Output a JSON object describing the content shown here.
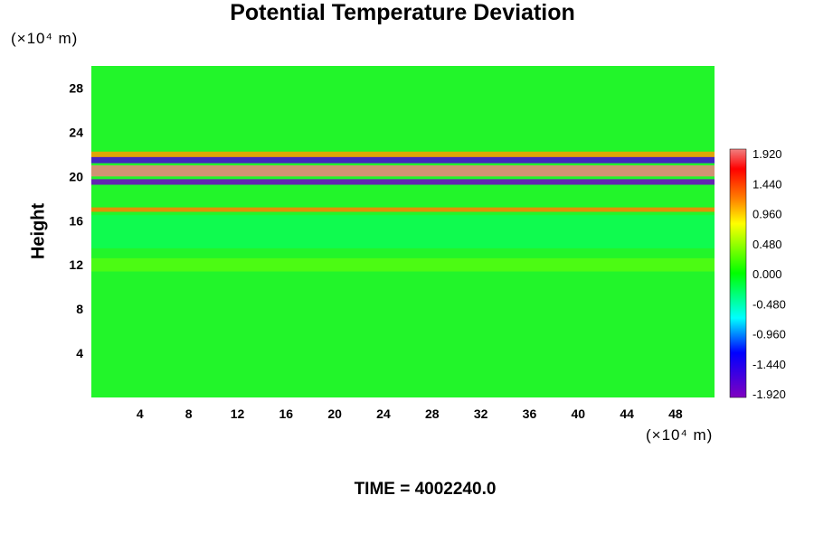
{
  "chart_data": {
    "type": "heatmap",
    "title": "Potential Temperature Deviation",
    "xlabel": "",
    "ylabel": "Height",
    "x_unit": "(×10⁴ m)",
    "y_unit": "(×10⁴ m)",
    "x_range": [
      0,
      51.2
    ],
    "y_range": [
      0,
      30
    ],
    "x_ticks": [
      "4",
      "8",
      "12",
      "16",
      "20",
      "24",
      "28",
      "32",
      "36",
      "40",
      "44",
      "48"
    ],
    "y_ticks": [
      "4",
      "8",
      "12",
      "16",
      "20",
      "24",
      "28"
    ],
    "colorbar_ticks": [
      "1.920",
      "1.440",
      "0.960",
      "0.480",
      "0.000",
      "-0.480",
      "-0.960",
      "-1.440",
      "-1.920"
    ],
    "colorbar_range": [
      -2.0,
      2.0
    ],
    "dominant_value": 0.0,
    "features": [
      {
        "y": 20.5,
        "value": 2.0
      },
      {
        "y": 21.5,
        "value": -1.7
      },
      {
        "y": 19.5,
        "value": -1.9
      },
      {
        "y": 22.0,
        "value": 1.2
      },
      {
        "y": 17.0,
        "value": 1.3
      },
      {
        "y": 12.0,
        "value": 0.35
      },
      {
        "y": 15.0,
        "value": -0.3
      }
    ],
    "annotation": "TIME = 4002240.0"
  }
}
